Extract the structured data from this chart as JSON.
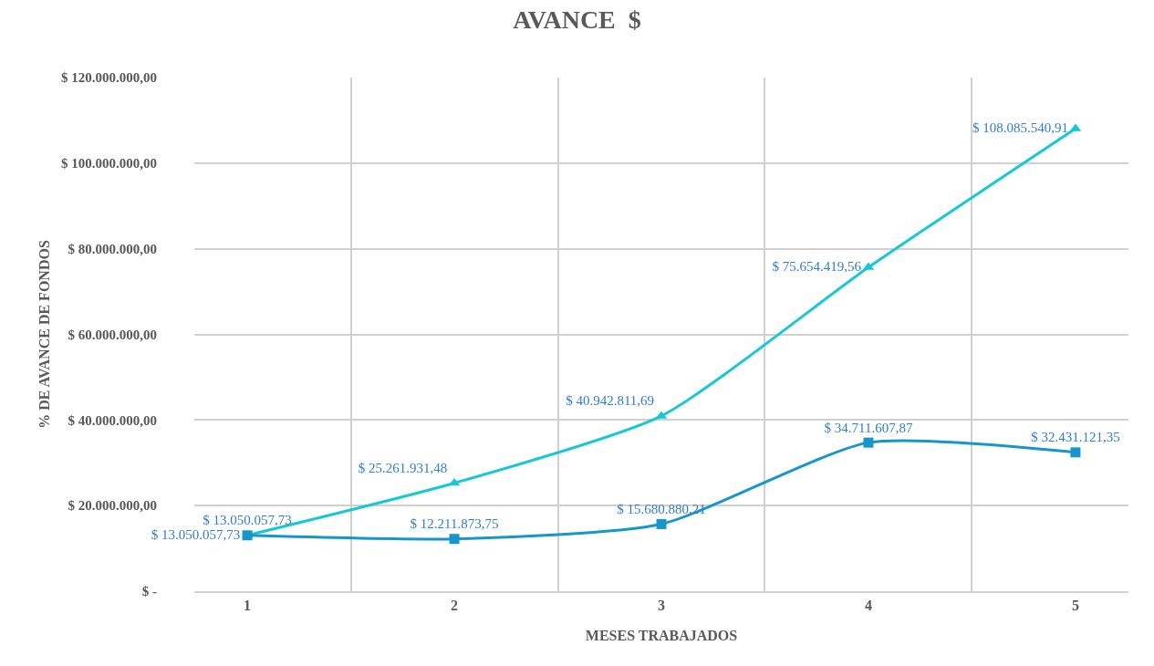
{
  "chart_data": {
    "type": "line",
    "title": "AVANCE  $",
    "xlabel": "MESES TRABAJADOS",
    "ylabel": "% DE AVANCE DE FONDOS",
    "categories": [
      "1",
      "2",
      "3",
      "4",
      "5"
    ],
    "series": [
      {
        "color": "#17c8d4",
        "marker": "triangle",
        "values": [
          13050057.73,
          25261931.48,
          40942811.69,
          75654419.56,
          108085540.91
        ],
        "value_labels": [
          "$ 13.050.057,73",
          "$ 25.261.931,48",
          "$ 40.942.811,69",
          "$ 75.654.419,56",
          "$ 108.085.540,91"
        ]
      },
      {
        "color": "#1796cc",
        "marker": "square",
        "values": [
          13050057.73,
          12211873.75,
          15680880.21,
          34711607.87,
          32431121.35
        ],
        "value_labels": [
          "$ 13.050.057,73",
          "$ 12.211.873,75",
          "$ 15.680.880,21",
          "$ 34.711.607,87",
          "$ 32.431.121,35"
        ]
      }
    ],
    "ylim": [
      0,
      120000000
    ],
    "yticks": [
      {
        "value": 0,
        "label": "$ -"
      },
      {
        "value": 20000000,
        "label": "$ 20.000.000,00"
      },
      {
        "value": 40000000,
        "label": "$ 40.000.000,00"
      },
      {
        "value": 60000000,
        "label": "$ 60.000.000,00"
      },
      {
        "value": 80000000,
        "label": "$ 80.000.000,00"
      },
      {
        "value": 100000000,
        "label": "$ 100.000.000,00"
      },
      {
        "value": 120000000,
        "label": "$ 120.000.000,00"
      }
    ],
    "grid": true
  }
}
